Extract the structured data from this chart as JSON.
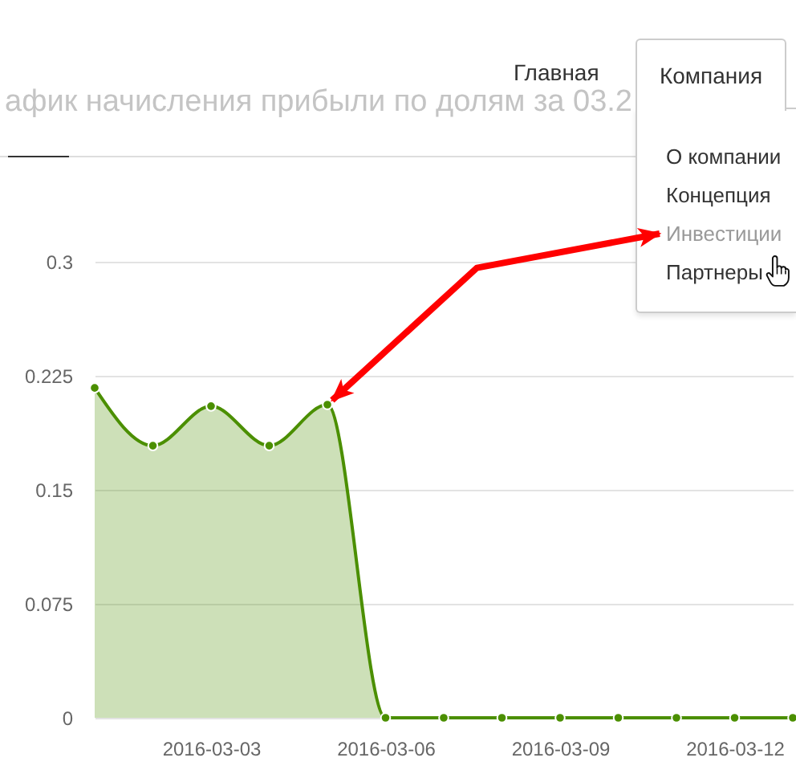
{
  "chart_data": {
    "type": "area",
    "title": "афик начисления прибыли по долям за 03.2",
    "x": [
      "2016-03-01",
      "2016-03-02",
      "2016-03-03",
      "2016-03-04",
      "2016-03-05",
      "2016-03-06",
      "2016-03-07",
      "2016-03-08",
      "2016-03-09",
      "2016-03-10",
      "2016-03-11",
      "2016-03-12",
      "2016-03-13"
    ],
    "values": [
      0.217,
      0.179,
      0.205,
      0.179,
      0.206,
      0,
      0,
      0,
      0,
      0,
      0,
      0,
      0
    ],
    "color": "#4b8f00",
    "xlim": [
      "2016-03-01",
      "2016-03-13"
    ],
    "xticks": [
      "2016-03-03",
      "2016-03-06",
      "2016-03-09",
      "2016-03-12"
    ],
    "ylim": [
      0,
      0.3
    ],
    "yticks": [
      0,
      0.075,
      0.15,
      0.225,
      0.3
    ],
    "grid": "y",
    "marker": "circle",
    "line_style": "solid",
    "annotations": [
      "Главная",
      "Компания",
      "О компании",
      "Концепция",
      {
        "text": "Инвестиции",
        "x": "2016-03-05",
        "y": 0.206
      },
      "Партнеры"
    ]
  }
}
